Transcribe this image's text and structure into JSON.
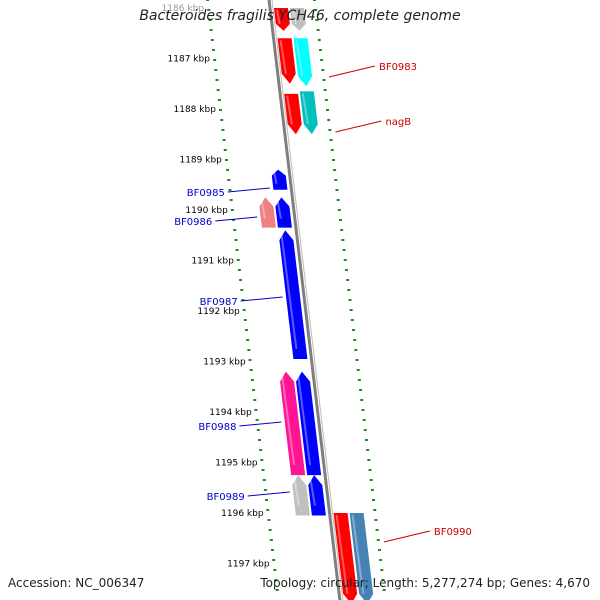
{
  "title": "Bacteroides fragilis YCH46, complete genome",
  "accession": "Accession: NC_006347",
  "summary": "Topology: circular; Length: 5,277,274 bp; Genes: 4,670",
  "ruler": [
    "1186 kbp",
    "1187 kbp",
    "1188 kbp",
    "1189 kbp",
    "1190 kbp",
    "1191 kbp",
    "1192 kbp",
    "1193 kbp",
    "1194 kbp",
    "1195 kbp",
    "1196 kbp",
    "1197 kbp"
  ],
  "genes": [
    {
      "id": "top-red",
      "strand": "forward",
      "color": "#ff0000",
      "start_kbp": 1186.0,
      "end_kbp": 1186.45
    },
    {
      "id": "top-grey",
      "strand": "forward",
      "color": "#c0c0c0",
      "start_kbp": 1186.0,
      "end_kbp": 1186.45
    },
    {
      "id": "BF0983",
      "label": "BF0983",
      "strand": "forward",
      "color": "#00ffff",
      "start_kbp": 1186.6,
      "end_kbp": 1187.55
    },
    {
      "id": "red-2",
      "strand": "forward",
      "color": "#ff0000",
      "start_kbp": 1186.6,
      "end_kbp": 1187.5
    },
    {
      "id": "nagB",
      "label": "nagB",
      "strand": "forward",
      "color": "#00bfbf",
      "start_kbp": 1187.65,
      "end_kbp": 1188.5
    },
    {
      "id": "red-3",
      "strand": "forward",
      "color": "#ff0000",
      "start_kbp": 1187.7,
      "end_kbp": 1188.5
    },
    {
      "id": "BF0985",
      "label": "BF0985",
      "strand": "reverse",
      "color": "#0000ff",
      "start_kbp": 1189.2,
      "end_kbp": 1189.6
    },
    {
      "id": "BF0986",
      "label": "BF0986",
      "strand": "reverse",
      "color": "#f08080",
      "start_kbp": 1189.75,
      "end_kbp": 1190.35
    },
    {
      "id": "blue-2",
      "strand": "reverse",
      "color": "#0000ff",
      "start_kbp": 1189.75,
      "end_kbp": 1190.35
    },
    {
      "id": "BF0987",
      "label": "BF0987",
      "strand": "reverse",
      "color": "#0000ff",
      "start_kbp": 1190.4,
      "end_kbp": 1192.95
    },
    {
      "id": "BF0988",
      "label": "BF0988",
      "strand": "reverse",
      "color": "#ff1493",
      "start_kbp": 1193.2,
      "end_kbp": 1195.25
    },
    {
      "id": "blue-4",
      "strand": "reverse",
      "color": "#0000ff",
      "start_kbp": 1193.2,
      "end_kbp": 1195.25
    },
    {
      "id": "BF0989",
      "label": "BF0989",
      "strand": "reverse",
      "color": "#c0c0c0",
      "start_kbp": 1195.25,
      "end_kbp": 1196.05
    },
    {
      "id": "blue-5",
      "strand": "reverse",
      "color": "#0000ff",
      "start_kbp": 1195.25,
      "end_kbp": 1196.05
    },
    {
      "id": "BF0990",
      "label": "BF0990",
      "strand": "forward",
      "color": "#4682b4",
      "start_kbp": 1196.0,
      "end_kbp": 1197.8
    },
    {
      "id": "red-6",
      "strand": "forward",
      "color": "#ff0000",
      "start_kbp": 1196.0,
      "end_kbp": 1197.8
    }
  ],
  "colors": {
    "backbone": "#7f7f7f",
    "tick": "#1e8c1e",
    "forward_label": "#cc0000",
    "reverse_label": "#0000cc",
    "ruler_text": "#000000"
  }
}
